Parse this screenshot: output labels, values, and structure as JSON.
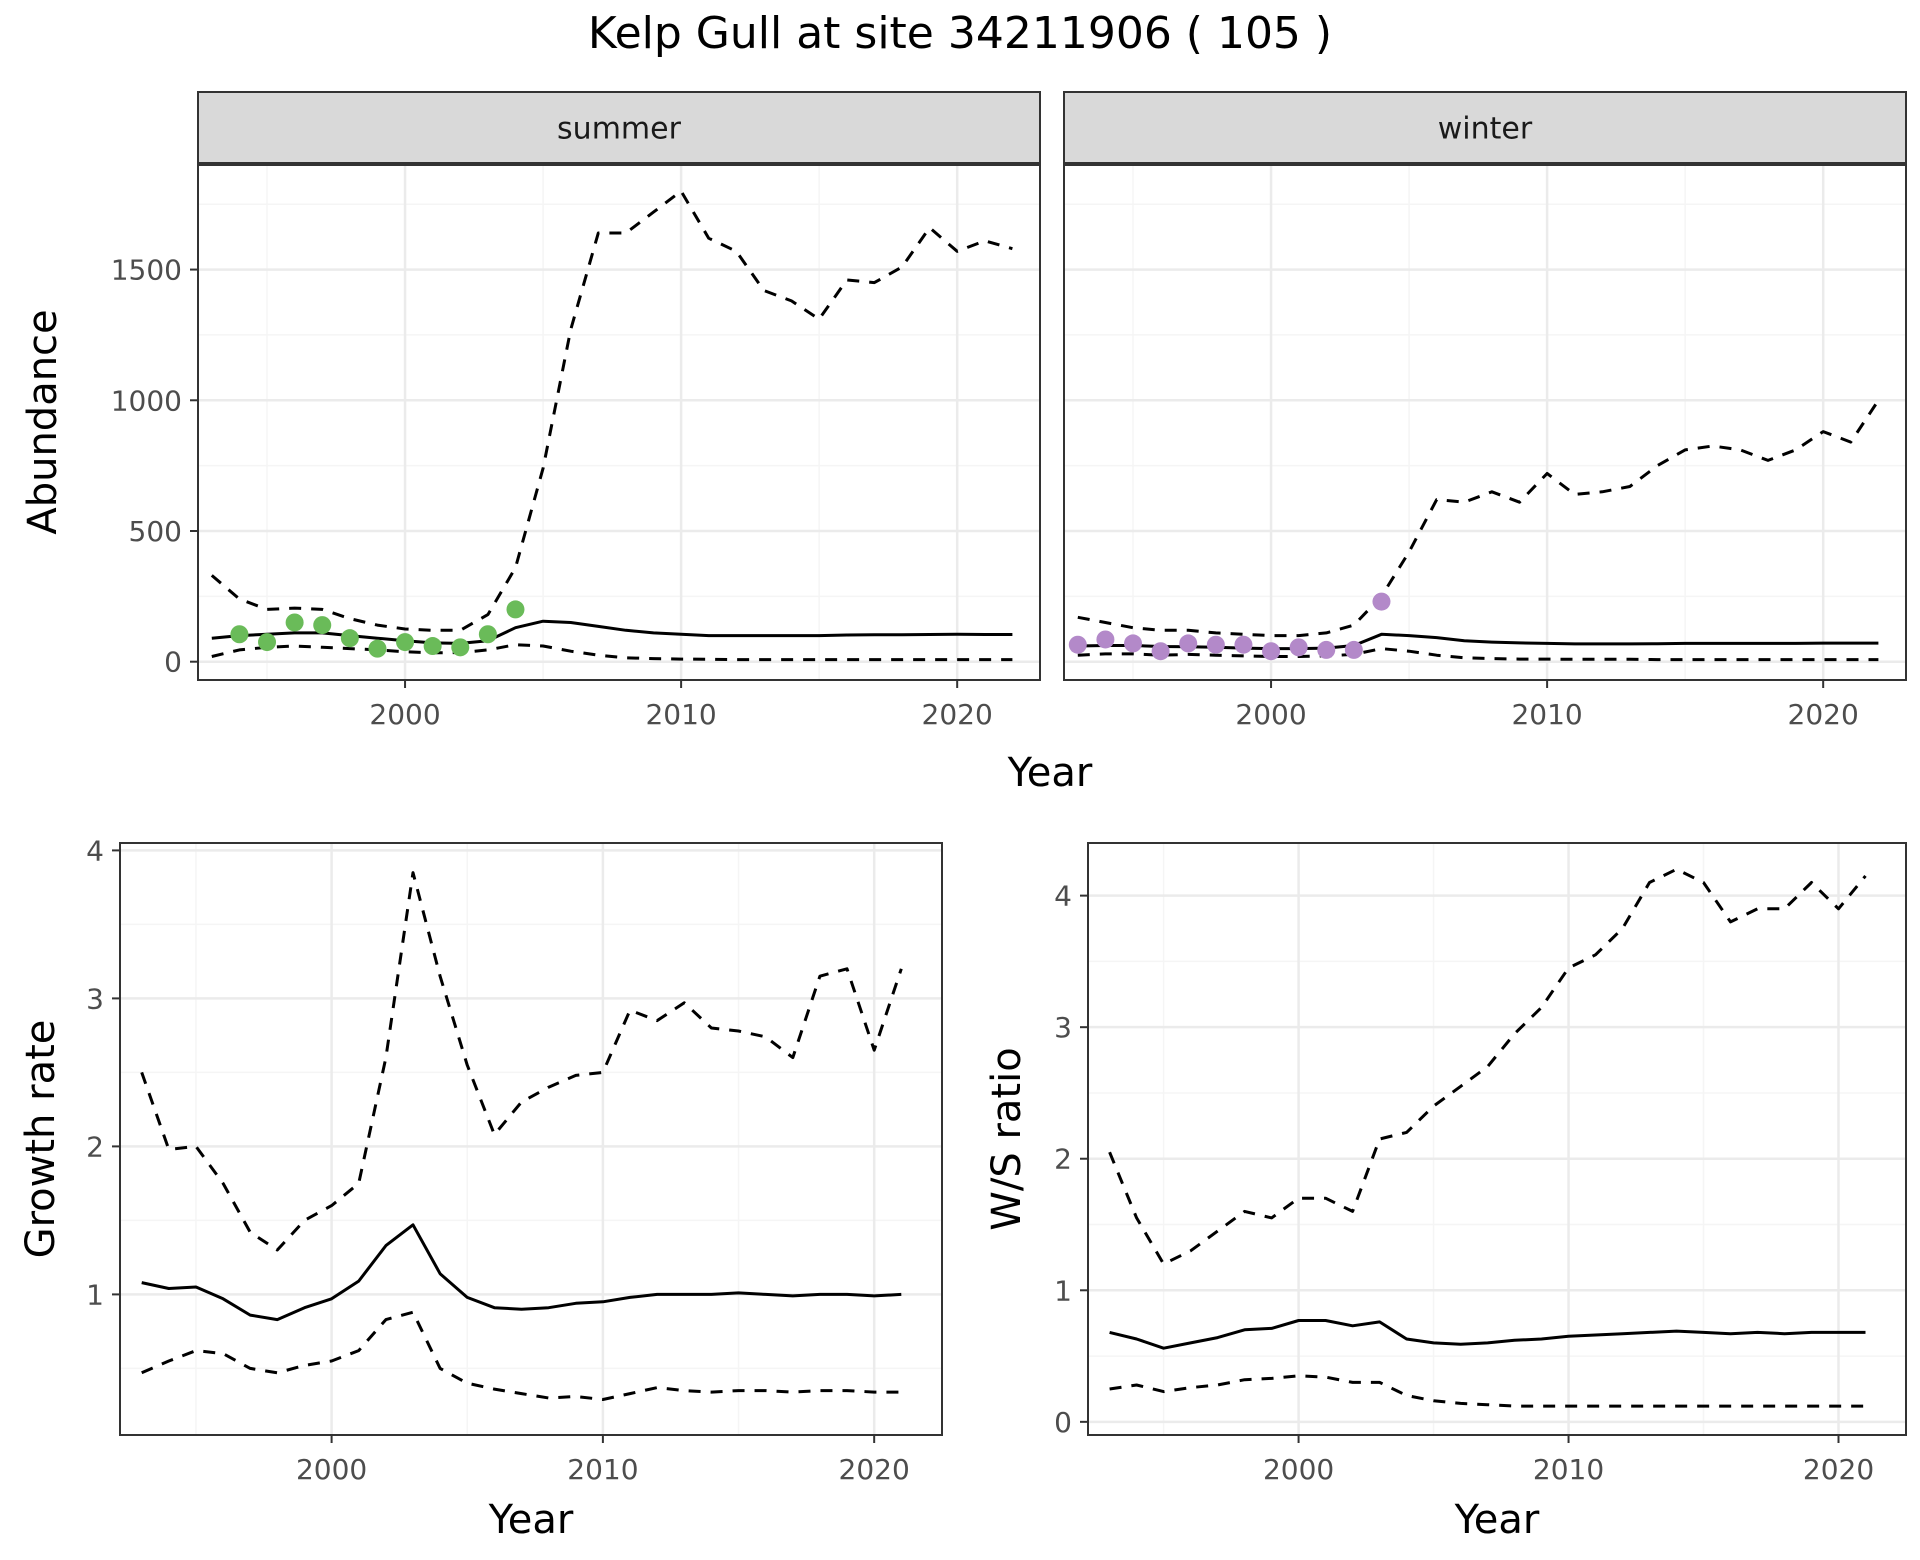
{
  "title": "Kelp Gull at site 34211906 ( 105 )",
  "colors": {
    "summer_points": "#6abb59",
    "winter_points": "#b389c9",
    "line": "#000000",
    "strip_fill": "#d9d9d9",
    "grid_major": "#ebebeb",
    "grid_minor": "#f5f5f5"
  },
  "chart_data": [
    {
      "type": "line",
      "facet": "summer",
      "xlabel": "Year",
      "ylabel": "Abundance",
      "xlim": [
        1992.5,
        2023
      ],
      "ylim": [
        -70,
        1900
      ],
      "xticks": [
        2000,
        2010,
        2020
      ],
      "yticks": [
        0,
        500,
        1000,
        1500
      ],
      "grid": true,
      "x": [
        1993,
        1994,
        1995,
        1996,
        1997,
        1998,
        1999,
        2000,
        2001,
        2002,
        2003,
        2004,
        2005,
        2006,
        2007,
        2008,
        2009,
        2010,
        2011,
        2012,
        2013,
        2014,
        2015,
        2016,
        2017,
        2018,
        2019,
        2020,
        2021,
        2022
      ],
      "series": [
        {
          "role": "estimate",
          "style": "solid",
          "values": [
            90,
            100,
            105,
            110,
            110,
            100,
            90,
            80,
            72,
            70,
            80,
            130,
            155,
            150,
            135,
            120,
            110,
            105,
            100,
            100,
            100,
            100,
            100,
            102,
            103,
            103,
            104,
            105,
            104,
            104
          ]
        },
        {
          "role": "upper",
          "style": "dashed",
          "values": [
            330,
            240,
            200,
            205,
            200,
            165,
            140,
            125,
            120,
            120,
            180,
            360,
            740,
            1270,
            1640,
            1640,
            1720,
            1800,
            1620,
            1570,
            1420,
            1380,
            1310,
            1460,
            1450,
            1510,
            1660,
            1570,
            1610,
            1580
          ]
        },
        {
          "role": "lower",
          "style": "dashed",
          "values": [
            20,
            45,
            55,
            60,
            55,
            50,
            45,
            38,
            34,
            35,
            45,
            65,
            60,
            40,
            25,
            15,
            12,
            10,
            9,
            8,
            8,
            8,
            8,
            8,
            8,
            8,
            8,
            8,
            8,
            8
          ]
        }
      ],
      "points": {
        "x": [
          1994,
          1995,
          1996,
          1997,
          1998,
          1999,
          2000,
          2001,
          2002,
          2003,
          2004
        ],
        "y": [
          105,
          75,
          150,
          140,
          90,
          50,
          75,
          60,
          55,
          105,
          200
        ]
      }
    },
    {
      "type": "line",
      "facet": "winter",
      "xlabel": "Year",
      "ylabel": "Abundance",
      "xlim": [
        1992.5,
        2023
      ],
      "ylim": [
        -70,
        1900
      ],
      "xticks": [
        2000,
        2010,
        2020
      ],
      "yticks": [
        0,
        500,
        1000,
        1500
      ],
      "grid": true,
      "x": [
        1993,
        1994,
        1995,
        1996,
        1997,
        1998,
        1999,
        2000,
        2001,
        2002,
        2003,
        2004,
        2005,
        2006,
        2007,
        2008,
        2009,
        2010,
        2011,
        2012,
        2013,
        2014,
        2015,
        2016,
        2017,
        2018,
        2019,
        2020,
        2021,
        2022
      ],
      "series": [
        {
          "role": "estimate",
          "style": "solid",
          "values": [
            60,
            62,
            62,
            58,
            57,
            55,
            52,
            50,
            50,
            52,
            62,
            105,
            100,
            92,
            80,
            75,
            72,
            70,
            68,
            68,
            68,
            69,
            70,
            70,
            70,
            70,
            70,
            71,
            71,
            71
          ]
        },
        {
          "role": "upper",
          "style": "dashed",
          "values": [
            170,
            150,
            130,
            120,
            120,
            110,
            105,
            100,
            100,
            110,
            140,
            250,
            420,
            620,
            610,
            650,
            610,
            720,
            640,
            650,
            670,
            750,
            810,
            825,
            810,
            770,
            810,
            880,
            840,
            1000
          ]
        },
        {
          "role": "lower",
          "style": "dashed",
          "values": [
            25,
            30,
            30,
            25,
            28,
            25,
            22,
            20,
            20,
            22,
            28,
            50,
            40,
            25,
            15,
            12,
            10,
            10,
            9,
            9,
            9,
            8,
            8,
            8,
            8,
            8,
            8,
            8,
            8,
            8
          ]
        }
      ],
      "points": {
        "x": [
          1993,
          1994,
          1995,
          1996,
          1997,
          1998,
          1999,
          2000,
          2001,
          2002,
          2003,
          2004
        ],
        "y": [
          65,
          85,
          70,
          40,
          70,
          65,
          65,
          40,
          55,
          45,
          45,
          230
        ]
      }
    },
    {
      "type": "line",
      "xlabel": "Year",
      "ylabel": "Growth rate",
      "xlim": [
        1992.2,
        2022.5
      ],
      "ylim": [
        0.05,
        4.05
      ],
      "xticks": [
        2000,
        2010,
        2020
      ],
      "yticks": [
        1,
        2,
        3,
        4
      ],
      "grid": true,
      "x": [
        1993,
        1994,
        1995,
        1996,
        1997,
        1998,
        1999,
        2000,
        2001,
        2002,
        2003,
        2004,
        2005,
        2006,
        2007,
        2008,
        2009,
        2010,
        2011,
        2012,
        2013,
        2014,
        2015,
        2016,
        2017,
        2018,
        2019,
        2020,
        2021
      ],
      "series": [
        {
          "role": "estimate",
          "style": "solid",
          "values": [
            1.08,
            1.04,
            1.05,
            0.97,
            0.86,
            0.83,
            0.91,
            0.97,
            1.09,
            1.33,
            1.47,
            1.14,
            0.98,
            0.91,
            0.9,
            0.91,
            0.94,
            0.95,
            0.98,
            1.0,
            1.0,
            1.0,
            1.01,
            1.0,
            0.99,
            1.0,
            1.0,
            0.99,
            1.0
          ]
        },
        {
          "role": "upper",
          "style": "dashed",
          "values": [
            2.5,
            1.98,
            2.0,
            1.75,
            1.42,
            1.3,
            1.5,
            1.6,
            1.75,
            2.6,
            3.85,
            3.15,
            2.55,
            2.08,
            2.3,
            2.4,
            2.48,
            2.5,
            2.92,
            2.85,
            2.97,
            2.8,
            2.78,
            2.74,
            2.6,
            3.15,
            3.2,
            2.65,
            3.2
          ]
        },
        {
          "role": "lower",
          "style": "dashed",
          "values": [
            0.47,
            0.55,
            0.62,
            0.6,
            0.5,
            0.47,
            0.52,
            0.55,
            0.62,
            0.83,
            0.88,
            0.5,
            0.4,
            0.36,
            0.33,
            0.3,
            0.31,
            0.29,
            0.33,
            0.37,
            0.35,
            0.34,
            0.35,
            0.35,
            0.34,
            0.35,
            0.35,
            0.34,
            0.34
          ]
        }
      ]
    },
    {
      "type": "line",
      "xlabel": "Year",
      "ylabel": "W/S ratio",
      "xlim": [
        1992.2,
        2022.5
      ],
      "ylim": [
        -0.1,
        4.4
      ],
      "xticks": [
        2000,
        2010,
        2020
      ],
      "yticks": [
        0,
        1,
        2,
        3,
        4
      ],
      "grid": true,
      "x": [
        1993,
        1994,
        1995,
        1996,
        1997,
        1998,
        1999,
        2000,
        2001,
        2002,
        2003,
        2004,
        2005,
        2006,
        2007,
        2008,
        2009,
        2010,
        2011,
        2012,
        2013,
        2014,
        2015,
        2016,
        2017,
        2018,
        2019,
        2020,
        2021
      ],
      "series": [
        {
          "role": "estimate",
          "style": "solid",
          "values": [
            0.68,
            0.63,
            0.56,
            0.6,
            0.64,
            0.7,
            0.71,
            0.77,
            0.77,
            0.73,
            0.76,
            0.63,
            0.6,
            0.59,
            0.6,
            0.62,
            0.63,
            0.65,
            0.66,
            0.67,
            0.68,
            0.69,
            0.68,
            0.67,
            0.68,
            0.67,
            0.68,
            0.68,
            0.68
          ]
        },
        {
          "role": "upper",
          "style": "dashed",
          "values": [
            2.05,
            1.55,
            1.2,
            1.3,
            1.45,
            1.6,
            1.55,
            1.7,
            1.7,
            1.6,
            2.15,
            2.2,
            2.4,
            2.55,
            2.7,
            2.95,
            3.15,
            3.45,
            3.55,
            3.75,
            4.1,
            4.2,
            4.1,
            3.8,
            3.9,
            3.9,
            4.1,
            3.9,
            4.15
          ]
        },
        {
          "role": "lower",
          "style": "dashed",
          "values": [
            0.25,
            0.28,
            0.23,
            0.26,
            0.28,
            0.32,
            0.33,
            0.35,
            0.34,
            0.3,
            0.3,
            0.2,
            0.16,
            0.14,
            0.13,
            0.12,
            0.12,
            0.12,
            0.12,
            0.12,
            0.12,
            0.12,
            0.12,
            0.12,
            0.12,
            0.12,
            0.12,
            0.12,
            0.12
          ]
        }
      ]
    }
  ],
  "facets": {
    "summer": "summer",
    "winter": "winter"
  }
}
